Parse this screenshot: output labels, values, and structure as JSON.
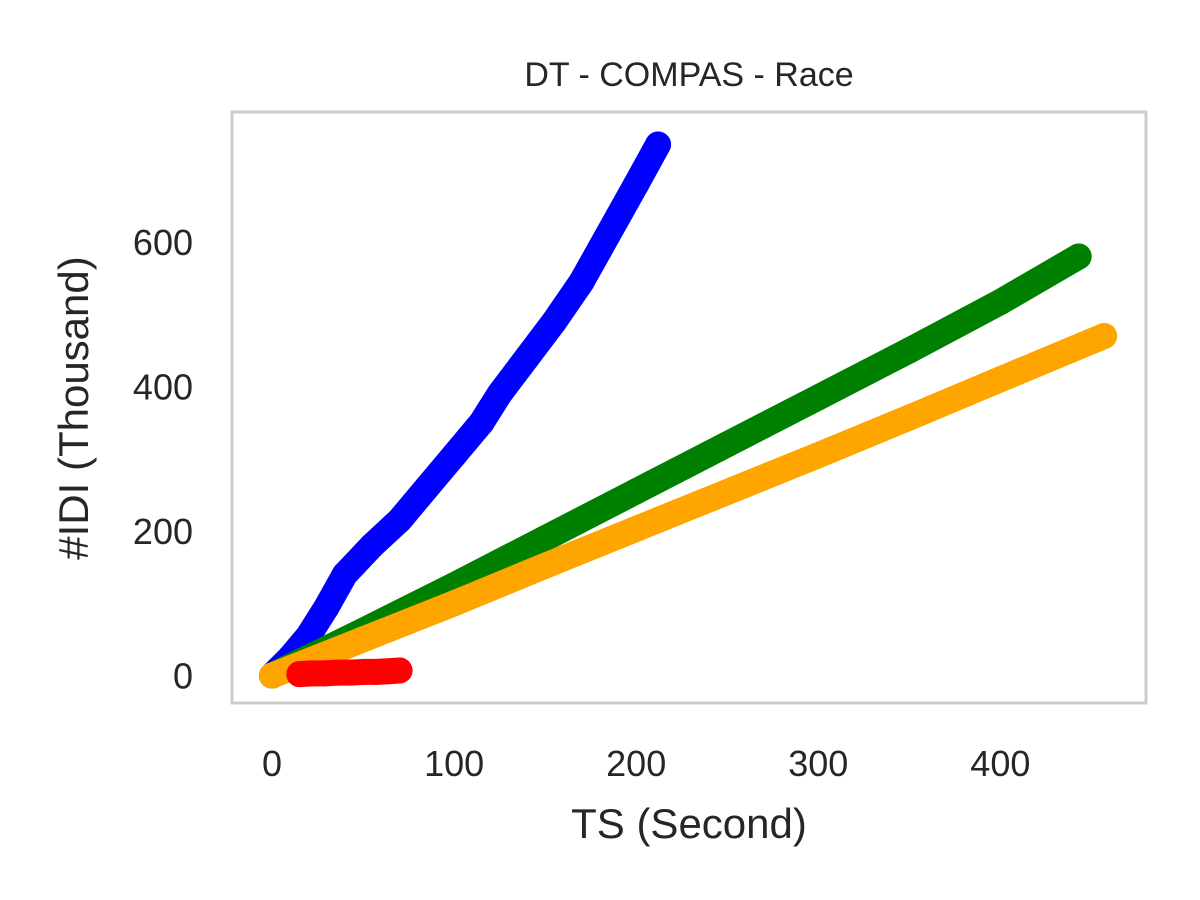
{
  "chart_data": {
    "type": "scatter",
    "title": "DT - COMPAS - Race",
    "xlabel": "TS (Second)",
    "ylabel": "#IDI (Thousand)",
    "xlim": [
      -22,
      480
    ],
    "ylim": [
      -38,
      780
    ],
    "xticks": [
      0,
      100,
      200,
      300,
      400
    ],
    "yticks": [
      0,
      200,
      400,
      600
    ],
    "grid": false,
    "series": [
      {
        "color": "#0000ff",
        "points": [
          [
            0,
            0
          ],
          [
            10,
            25
          ],
          [
            20,
            55
          ],
          [
            30,
            95
          ],
          [
            40,
            140
          ],
          [
            55,
            180
          ],
          [
            70,
            215
          ],
          [
            85,
            260
          ],
          [
            100,
            305
          ],
          [
            115,
            350
          ],
          [
            125,
            390
          ],
          [
            140,
            440
          ],
          [
            155,
            490
          ],
          [
            170,
            545
          ],
          [
            180,
            590
          ],
          [
            190,
            635
          ],
          [
            200,
            680
          ],
          [
            212,
            735
          ]
        ]
      },
      {
        "color": "#008000",
        "points": [
          [
            0,
            0
          ],
          [
            50,
            62
          ],
          [
            100,
            125
          ],
          [
            150,
            190
          ],
          [
            200,
            255
          ],
          [
            250,
            320
          ],
          [
            300,
            385
          ],
          [
            350,
            450
          ],
          [
            400,
            517
          ],
          [
            443,
            580
          ]
        ]
      },
      {
        "color": "#ffa500",
        "points": [
          [
            0,
            0
          ],
          [
            50,
            50
          ],
          [
            100,
            100
          ],
          [
            150,
            152
          ],
          [
            200,
            203
          ],
          [
            250,
            254
          ],
          [
            300,
            305
          ],
          [
            350,
            357
          ],
          [
            400,
            410
          ],
          [
            457,
            470
          ]
        ]
      },
      {
        "color": "#ff0000",
        "points": [
          [
            15,
            2
          ],
          [
            22,
            3
          ],
          [
            29,
            3
          ],
          [
            36,
            4
          ],
          [
            43,
            4
          ],
          [
            50,
            5
          ],
          [
            57,
            5
          ],
          [
            64,
            6
          ],
          [
            70,
            7
          ]
        ]
      }
    ]
  }
}
